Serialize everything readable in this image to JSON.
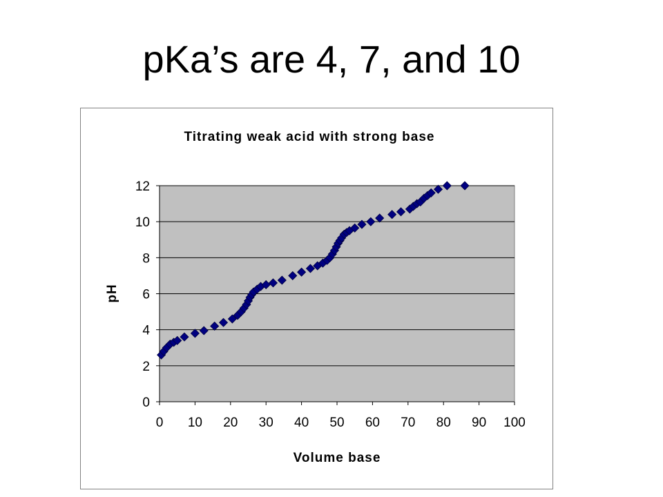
{
  "slide": {
    "title": "pKa’s are 4, 7, and 10"
  },
  "chart_data": {
    "type": "scatter",
    "title": "Titrating weak acid with strong base",
    "xlabel": "Volume base",
    "ylabel": "pH",
    "xlim": [
      0,
      100
    ],
    "ylim": [
      0,
      12
    ],
    "xticks": [
      0,
      10,
      20,
      30,
      40,
      50,
      60,
      70,
      80,
      90,
      100
    ],
    "yticks": [
      0,
      2,
      4,
      6,
      8,
      10,
      12
    ],
    "grid": true,
    "legend": "none",
    "colors": {
      "plot_bg": "#c0c0c0",
      "marker": "#000080",
      "grid": "#000000"
    },
    "marker": "diamond",
    "series": [
      {
        "x": [
          0.5,
          1.2,
          2,
          3,
          4,
          5,
          7,
          10,
          12.5,
          15.5,
          18,
          20.5,
          22,
          23,
          23.8,
          24.5,
          25,
          25.5,
          26,
          26.5,
          27.5,
          28.5,
          30,
          32,
          34.5,
          37.5,
          40,
          42.5,
          44.5,
          46,
          47.2,
          48,
          48.7,
          49.3,
          49.8,
          50.3,
          50.8,
          51.3,
          52,
          52.7,
          53.5,
          55,
          57,
          59.5,
          62,
          65.5,
          68,
          70.5,
          71.5,
          72.5,
          73.5,
          74.5,
          75.5,
          76.5,
          78.5,
          81,
          86
        ],
        "y": [
          2.6,
          2.8,
          3.0,
          3.2,
          3.3,
          3.4,
          3.6,
          3.8,
          3.95,
          4.2,
          4.4,
          4.6,
          4.8,
          5.0,
          5.2,
          5.4,
          5.6,
          5.8,
          5.95,
          6.1,
          6.25,
          6.4,
          6.5,
          6.6,
          6.75,
          7.0,
          7.2,
          7.4,
          7.55,
          7.7,
          7.85,
          8.0,
          8.2,
          8.4,
          8.6,
          8.8,
          8.95,
          9.1,
          9.3,
          9.4,
          9.5,
          9.65,
          9.85,
          10.0,
          10.2,
          10.4,
          10.55,
          10.7,
          10.85,
          11.0,
          11.1,
          11.3,
          11.45,
          11.6,
          11.8,
          12.0,
          12.0
        ]
      }
    ]
  }
}
